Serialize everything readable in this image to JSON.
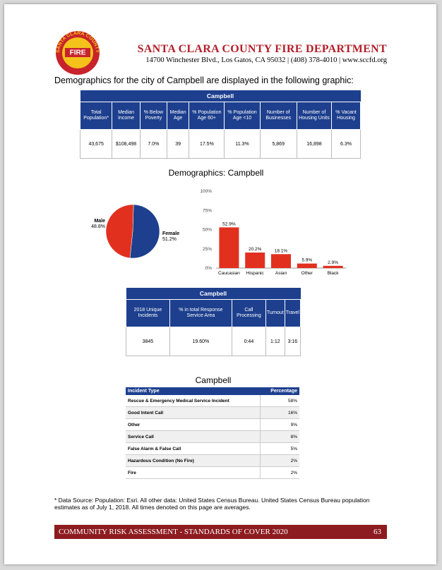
{
  "logo": {
    "arc_text": "SANTA CLARA COUNTY",
    "badge": "FIRE"
  },
  "header": {
    "title": "SANTA CLARA COUNTY FIRE DEPARTMENT",
    "address": "14700 Winchester Blvd., Los Gatos, CA 95032 | (408) 378-4010 | www.sccfd.org"
  },
  "intro": "Demographics for the city of Campbell are displayed in the following graphic:",
  "table1": {
    "title": "Campbell",
    "headers": [
      "Total Population*",
      "Median Income",
      "% Below Poverty",
      "Median Age",
      "% Population Age 60+",
      "% Population Age <10",
      "Number of Businesses",
      "Number of Housing Units",
      "% Vacant Housing"
    ],
    "rows": [
      [
        "43,675",
        "$108,498",
        "7.0%",
        "39",
        "17.5%",
        "11.3%",
        "5,869",
        "16,898",
        "6.3%"
      ]
    ]
  },
  "chart_data": [
    {
      "type": "pie",
      "title": "Demographics: Campbell",
      "categories": [
        "Male",
        "Female"
      ],
      "values": [
        48.8,
        51.2
      ],
      "value_labels": [
        "48.8%",
        "51.2%"
      ],
      "colors": [
        "#e2301f",
        "#1d3f8e"
      ]
    },
    {
      "type": "bar",
      "categories": [
        "Caucasian",
        "Hispanic",
        "Asian",
        "Other",
        "Black"
      ],
      "values": [
        52.9,
        20.2,
        18.1,
        5.9,
        2.9
      ],
      "value_labels": [
        "52.9%",
        "20.2%",
        "18.1%",
        "5.9%",
        "2.9%"
      ],
      "color": "#e2301f",
      "ylim": [
        0,
        100
      ],
      "yticks": [
        {
          "value": 0,
          "label": "0%"
        },
        {
          "value": 25,
          "label": "25%"
        },
        {
          "value": 50,
          "label": "50%"
        },
        {
          "value": 75,
          "label": "75%"
        },
        {
          "value": 100,
          "label": "100%"
        }
      ],
      "grid": false
    }
  ],
  "table2": {
    "title": "Campbell",
    "headers": [
      "2018 Unique Incidents",
      "% in total Response Service Area",
      "Call Processing",
      "Turnout",
      "Travel"
    ],
    "rows": [
      [
        "3845",
        "19.60%",
        "0:44",
        "1:12",
        "3:16"
      ]
    ]
  },
  "table3": {
    "title": "Campbell",
    "headers": [
      "Incident Type",
      "Percentage"
    ],
    "rows": [
      [
        "Rescue & Emergency Medical Service Incident",
        "58%"
      ],
      [
        "Good Intent Call",
        "16%"
      ],
      [
        "Other",
        "9%"
      ],
      [
        "Service Call",
        "8%"
      ],
      [
        "False Alarm & False Call",
        "5%"
      ],
      [
        "Hazardous Condition (No Fire)",
        "2%"
      ],
      [
        "Fire",
        "2%"
      ]
    ]
  },
  "footnote": "* Data Source:  Population: Esri. All other data: United States Census Bureau. United States Census Bureau population estimates as of July 1, 2018. All times denoted on this page are averages.",
  "footer": {
    "text": "COMMUNITY RISK ASSESSMENT - STANDARDS OF COVER 2020",
    "page": "63"
  }
}
